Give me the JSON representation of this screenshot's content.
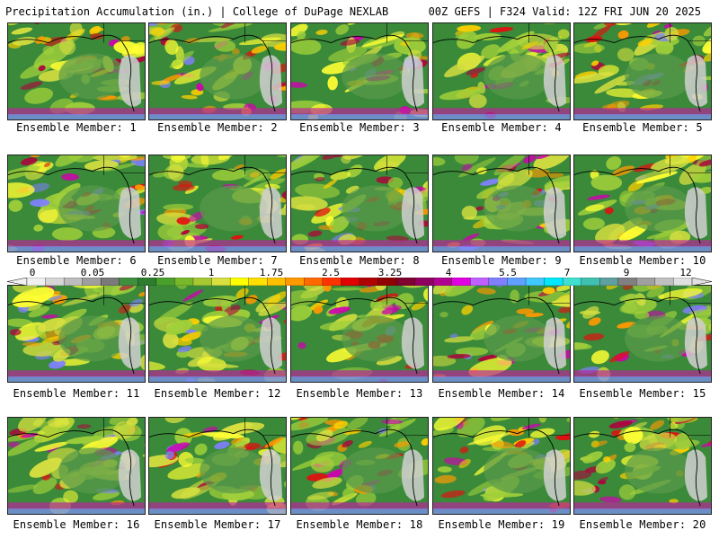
{
  "header": {
    "title": "Precipitation Accumulation (in.) | College of DuPage NEXLAB",
    "run_info": "00Z GEFS | F324 Valid: 12Z FRI JUN 20 2025"
  },
  "members": [
    {
      "label": "Ensemble Member: 1"
    },
    {
      "label": "Ensemble Member: 2"
    },
    {
      "label": "Ensemble Member: 3"
    },
    {
      "label": "Ensemble Member: 4"
    },
    {
      "label": "Ensemble Member: 5"
    },
    {
      "label": "Ensemble Member: 6"
    },
    {
      "label": "Ensemble Member: 7"
    },
    {
      "label": "Ensemble Member: 8"
    },
    {
      "label": "Ensemble Member: 9"
    },
    {
      "label": "Ensemble Member: 10"
    },
    {
      "label": "Ensemble Member: 11"
    },
    {
      "label": "Ensemble Member: 12"
    },
    {
      "label": "Ensemble Member: 13"
    },
    {
      "label": "Ensemble Member: 14"
    },
    {
      "label": "Ensemble Member: 15"
    },
    {
      "label": "Ensemble Member: 16"
    },
    {
      "label": "Ensemble Member: 17"
    },
    {
      "label": "Ensemble Member: 18"
    },
    {
      "label": "Ensemble Member: 19"
    },
    {
      "label": "Ensemble Member: 20"
    }
  ],
  "colorbar": {
    "ticks": [
      "0",
      "0.05",
      "0.25",
      "1",
      "1.75",
      "2.5",
      "3.25",
      "4",
      "5.5",
      "7",
      "9",
      "12"
    ],
    "colors": [
      "#f0f0f0",
      "#d6d6d6",
      "#bdbdbd",
      "#9e9e9e",
      "#7a7a7a",
      "#3f8f3f",
      "#2e7d2e",
      "#4aa02c",
      "#78b82a",
      "#a8c832",
      "#d8e040",
      "#ffff00",
      "#ffe000",
      "#ffc000",
      "#ff9900",
      "#ff6a00",
      "#ff3300",
      "#e00000",
      "#b00000",
      "#900000",
      "#800030",
      "#900060",
      "#b00090",
      "#e000e0",
      "#c060ff",
      "#8080ff",
      "#60a0ff",
      "#40c8ff",
      "#00e8ff",
      "#40e0d0",
      "#40c0b0",
      "#60a0a0",
      "#808080",
      "#a0a0a0",
      "#c0c0c0",
      "#e0e0e0"
    ]
  }
}
